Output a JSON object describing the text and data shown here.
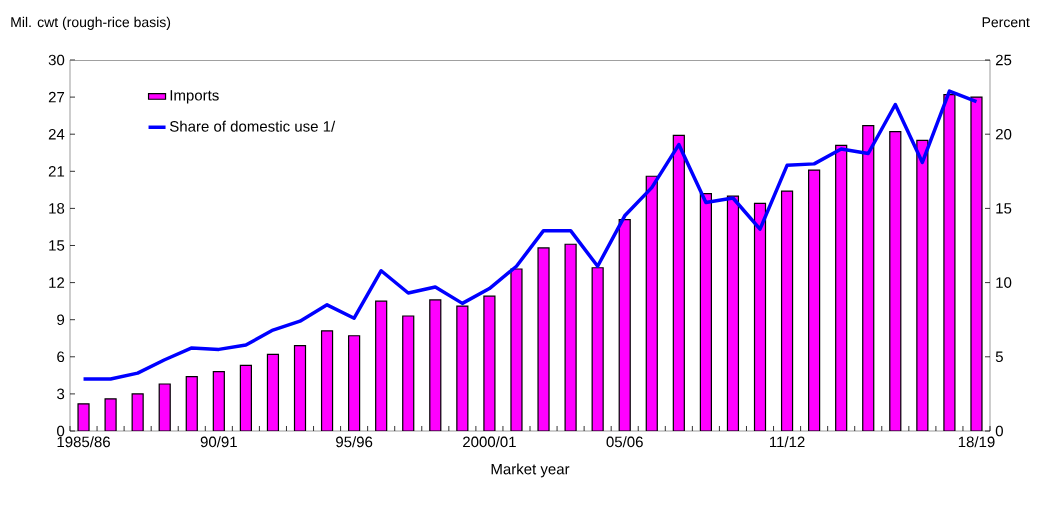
{
  "chart_data": {
    "type": "bar",
    "xlabel": "Market year",
    "ylabel": "Mil. cwt (rough-rice basis)",
    "y2label": "Percent",
    "categories": [
      "1985/86",
      null,
      null,
      null,
      null,
      "90/91",
      null,
      null,
      null,
      null,
      "95/96",
      null,
      null,
      null,
      null,
      "2000/01",
      null,
      null,
      null,
      null,
      "05/06",
      null,
      null,
      null,
      null,
      null,
      "11/12",
      null,
      null,
      null,
      null,
      null,
      null,
      "18/19"
    ],
    "series": [
      {
        "name": "Imports",
        "color": "#ff00ff",
        "values": [
          2.2,
          2.6,
          3.0,
          3.8,
          4.4,
          4.8,
          5.3,
          6.2,
          6.9,
          8.1,
          7.7,
          10.5,
          9.3,
          10.6,
          10.1,
          10.9,
          13.1,
          14.8,
          15.1,
          13.2,
          17.1,
          20.6,
          23.9,
          19.2,
          19.0,
          18.4,
          19.4,
          21.1,
          23.1,
          24.7,
          24.2,
          23.5,
          27.2,
          27.0
        ]
      },
      {
        "name": "Share of domestic use 1/",
        "type": "line",
        "axis": "y2",
        "color": "#0000ff",
        "values": [
          3.5,
          3.5,
          3.9,
          4.8,
          5.6,
          5.5,
          5.8,
          6.8,
          7.4,
          8.5,
          7.6,
          10.8,
          9.3,
          9.7,
          8.6,
          9.6,
          11.1,
          13.5,
          13.5,
          11.1,
          14.5,
          16.4,
          19.3,
          15.4,
          15.7,
          13.6,
          17.9,
          18.0,
          19.0,
          18.7,
          22.0,
          18.1,
          22.9,
          22.2
        ]
      }
    ],
    "ylim": [
      0,
      30
    ],
    "yticks": [
      0,
      3,
      6,
      9,
      12,
      15,
      18,
      21,
      24,
      27,
      30
    ],
    "y2lim": [
      0,
      25
    ],
    "y2ticks": [
      0,
      5,
      10,
      15,
      20,
      25
    ],
    "legend": "top left",
    "marker": "none"
  }
}
